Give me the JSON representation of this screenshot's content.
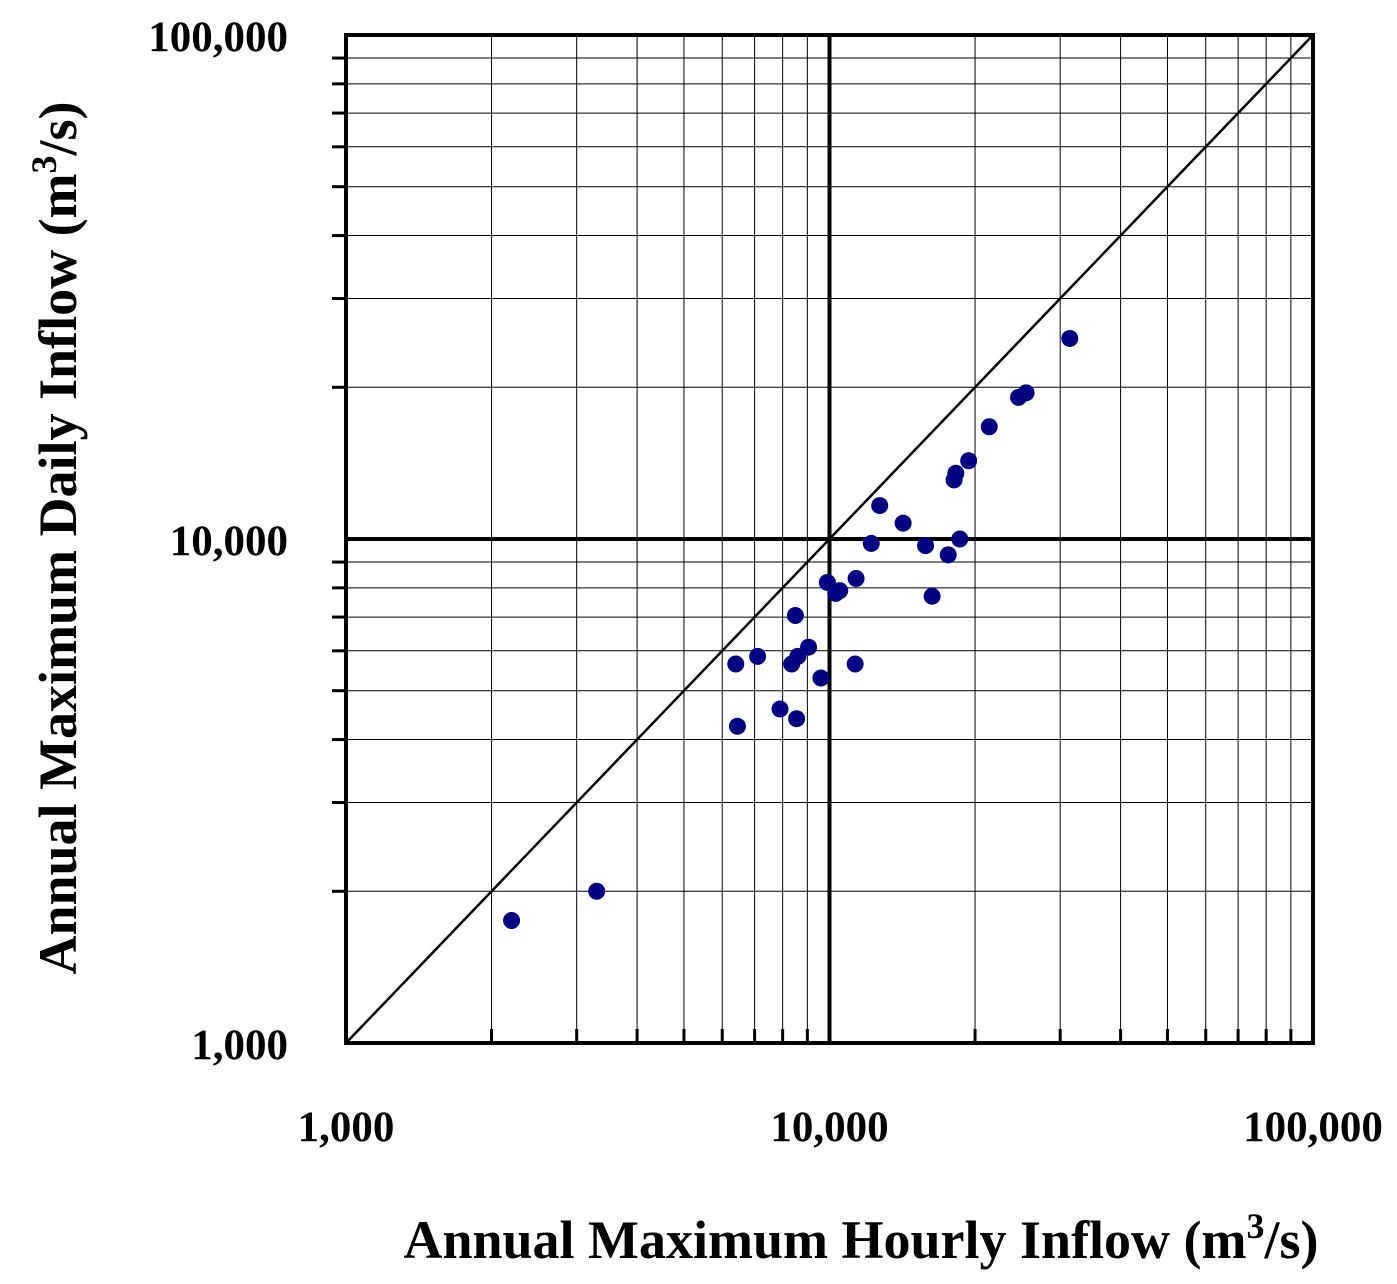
{
  "chart_data": {
    "type": "scatter",
    "title": "",
    "xlabel": "Annual Maximum Hourly Inflow (m³/s)",
    "xlabel_parts": {
      "main": "Annual Maximum Hourly Inflow (m",
      "sup": "3",
      "end": "/s)"
    },
    "ylabel": "Annual Maximum Daily Inflow (m³/s)",
    "ylabel_parts": {
      "main": "Annual Maximum Daily Inflow (m",
      "sup": "3",
      "end": "/s)"
    },
    "x_scale": "log",
    "y_scale": "log",
    "xlim": [
      1000,
      100000
    ],
    "ylim": [
      1000,
      100000
    ],
    "x_tick_labels": [
      "1,000",
      "10,000",
      "100,000"
    ],
    "y_tick_labels": [
      "1,000",
      "10,000",
      "100,000"
    ],
    "grid": true,
    "reference_line": "1:1 line",
    "marker_color": "#000080",
    "x": [
      2200,
      3300,
      6400,
      6450,
      7100,
      7900,
      8350,
      8500,
      8550,
      8600,
      9050,
      9600,
      9900,
      10300,
      10500,
      11300,
      11350,
      12200,
      12700,
      14200,
      15800,
      16300,
      17600,
      18100,
      18250,
      18600,
      19400,
      21400,
      24600,
      25500,
      31400
    ],
    "y": [
      1750,
      2000,
      5650,
      4250,
      5850,
      4600,
      5650,
      7050,
      4400,
      5850,
      6100,
      5300,
      8200,
      7800,
      7900,
      5650,
      8350,
      9800,
      11650,
      10750,
      9700,
      7700,
      9300,
      13100,
      13500,
      10000,
      14300,
      16700,
      19100,
      19500,
      25000
    ]
  }
}
